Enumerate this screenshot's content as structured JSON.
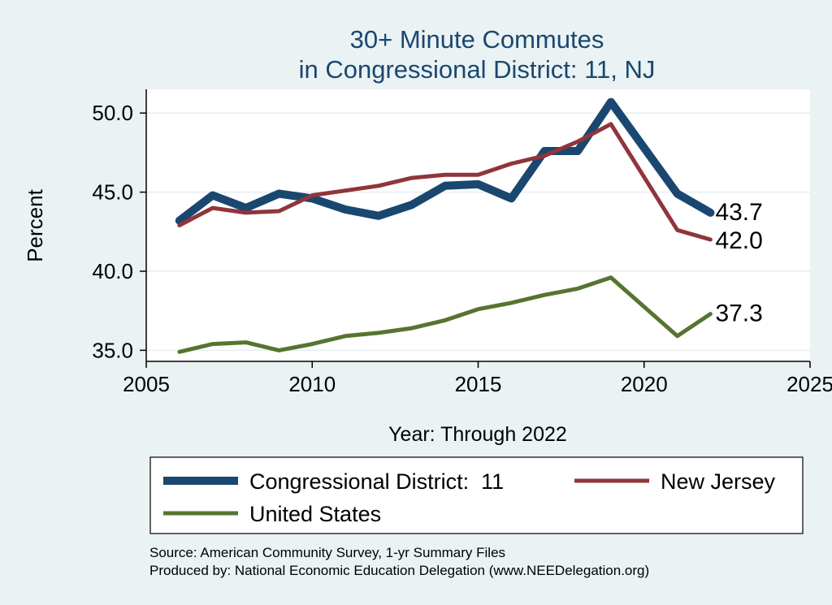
{
  "chart_data": {
    "type": "line",
    "title": [
      "30+ Minute Commutes",
      "in Congressional District:  11, NJ"
    ],
    "xlabel": "Year: Through 2022",
    "ylabel": "Percent",
    "xlim": [
      2005,
      2025
    ],
    "ylim": [
      34.3,
      51.5
    ],
    "x_ticks": [
      2005,
      2010,
      2015,
      2020,
      2025
    ],
    "y_ticks": [
      35,
      40,
      45,
      50
    ],
    "y_tick_labels": [
      "35.0",
      "40.0",
      "45.0",
      "50.0"
    ],
    "grid": true,
    "x": [
      2006,
      2007,
      2008,
      2009,
      2010,
      2011,
      2012,
      2013,
      2014,
      2015,
      2016,
      2017,
      2018,
      2019,
      2021,
      2022
    ],
    "series": [
      {
        "name": "Congressional District:  11",
        "color": "#1a476f",
        "values": [
          43.2,
          44.8,
          44.0,
          44.9,
          44.6,
          43.9,
          43.5,
          44.2,
          45.4,
          45.5,
          44.6,
          47.6,
          47.6,
          50.7,
          44.9,
          43.7
        ],
        "end_label": "43.7"
      },
      {
        "name": "New Jersey",
        "color": "#90353b",
        "values": [
          42.9,
          44.0,
          43.7,
          43.8,
          44.8,
          45.1,
          45.4,
          45.9,
          46.1,
          46.1,
          46.8,
          47.3,
          48.2,
          49.3,
          42.6,
          42.0
        ],
        "end_label": "42.0"
      },
      {
        "name": "United States",
        "color": "#55752f",
        "values": [
          34.9,
          35.4,
          35.5,
          35.0,
          35.4,
          35.9,
          36.1,
          36.4,
          36.9,
          37.6,
          38.0,
          38.5,
          38.9,
          39.6,
          35.9,
          37.3
        ],
        "end_label": "37.3"
      }
    ],
    "legend_position": "bottom",
    "notes": [
      "Source: American Community Survey, 1-yr Summary Files",
      "Produced by: National Economic Education Delegation (www.NEEDelegation.org)"
    ]
  }
}
